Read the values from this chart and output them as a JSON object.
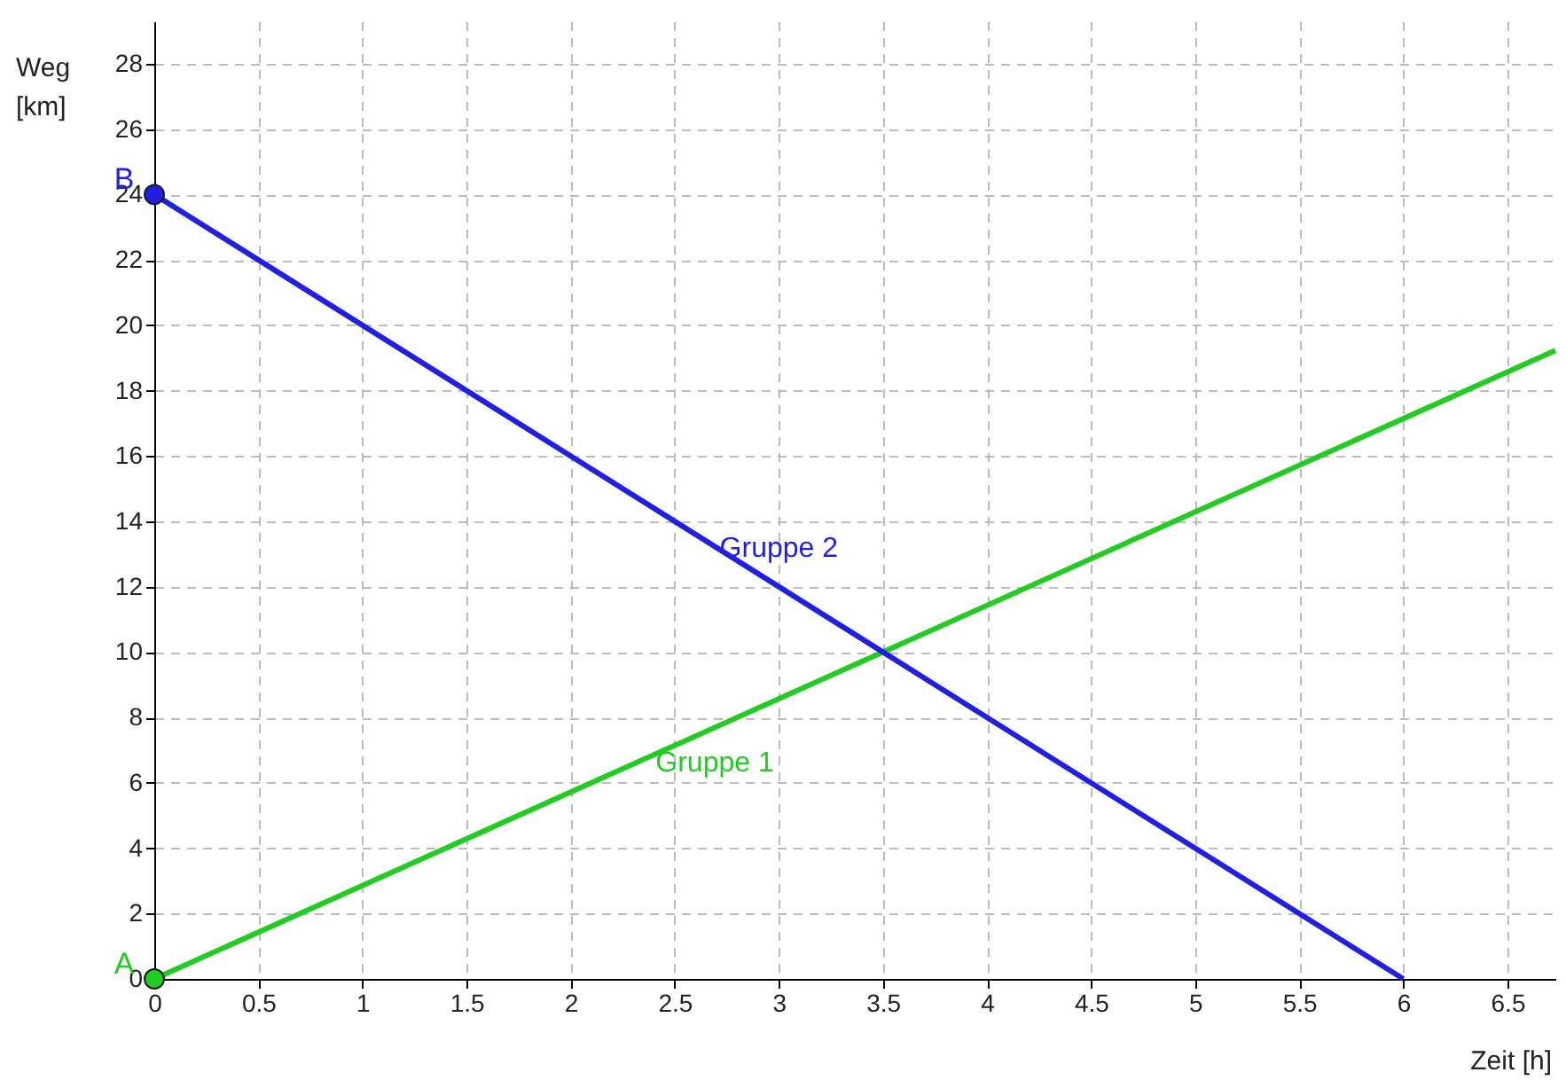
{
  "chart_data": {
    "type": "line",
    "xlabel": "Zeit [h]",
    "ylabel": "Weg [km]",
    "xlim": [
      0,
      6.73
    ],
    "xticks": [
      0,
      0.5,
      1,
      1.5,
      2,
      2.5,
      3,
      3.5,
      4,
      4.5,
      5,
      5.5,
      6,
      6.5
    ],
    "ylim": [
      0,
      29.3
    ],
    "yticks": [
      0,
      2,
      4,
      6,
      8,
      10,
      12,
      14,
      16,
      18,
      20,
      22,
      24,
      26,
      28
    ],
    "grid": true,
    "marker": "none",
    "line_style": "solid",
    "series": [
      {
        "name": "Gruppe 1",
        "color": "#22cc22",
        "x": [
          0,
          6.73
        ],
        "values": [
          0,
          19.23
        ]
      },
      {
        "name": "Gruppe 2",
        "color": "#1f1fe6",
        "x": [
          0,
          6
        ],
        "values": [
          24,
          0
        ]
      },
      {
        "type": "scatter",
        "color": "#22cc22",
        "x": [
          0
        ],
        "values": [
          0
        ],
        "marker": "circle"
      },
      {
        "type": "scatter",
        "color": "#1f1fe6",
        "x": [
          0
        ],
        "values": [
          24
        ],
        "marker": "circle"
      }
    ],
    "annotations": [
      {
        "text": "A",
        "x": 0,
        "y": 0
      },
      {
        "text": "B",
        "x": 0,
        "y": 24
      }
    ]
  }
}
